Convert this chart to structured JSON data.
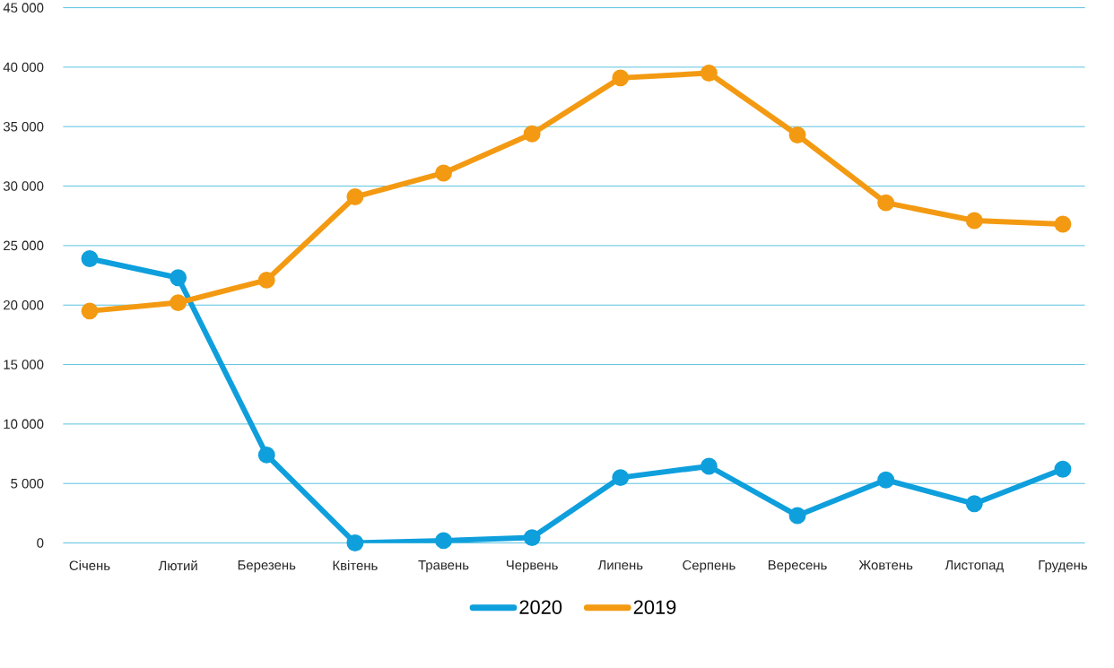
{
  "chart_data": {
    "type": "line",
    "categories": [
      "Січень",
      "Лютий",
      "Березень",
      "Квітень",
      "Травень",
      "Червень",
      "Липень",
      "Серпень",
      "Вересень",
      "Жовтень",
      "Листопад",
      "Грудень"
    ],
    "series": [
      {
        "name": "2020",
        "color": "#0e9fdc",
        "values": [
          23900,
          22300,
          7400,
          0,
          200,
          450,
          5500,
          6450,
          2300,
          5300,
          3300,
          6200
        ]
      },
      {
        "name": "2019",
        "color": "#f39a12",
        "values": [
          19500,
          20200,
          22100,
          29100,
          31100,
          34400,
          39100,
          39500,
          34300,
          28600,
          27100,
          26800
        ]
      }
    ],
    "ylim": [
      0,
      45000
    ],
    "yticks": [
      {
        "value": 0,
        "label": "0"
      },
      {
        "value": 5000,
        "label": "5 000"
      },
      {
        "value": 10000,
        "label": "10 000"
      },
      {
        "value": 15000,
        "label": "15 000"
      },
      {
        "value": 20000,
        "label": "20 000"
      },
      {
        "value": 25000,
        "label": "25 000"
      },
      {
        "value": 30000,
        "label": "30 000"
      },
      {
        "value": 35000,
        "label": "35 000"
      },
      {
        "value": 40000,
        "label": "40 000"
      },
      {
        "value": 45000,
        "label": "45 000"
      }
    ],
    "grid": "y",
    "legend": "bottom",
    "marker": "circle",
    "line_style": "solid"
  }
}
